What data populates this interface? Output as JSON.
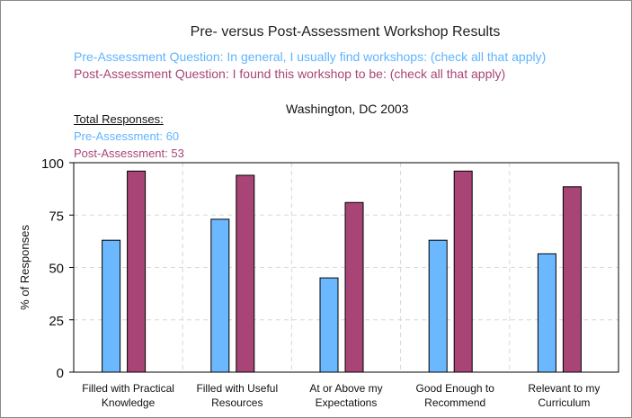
{
  "header": {
    "title": "Pre- versus Post-Assessment Workshop Results",
    "pre_question": "Pre-Assessment Question: In general, I usually find workshops: (check all that apply)",
    "post_question": "Post-Assessment Question: I found this workshop to be: (check all that apply)",
    "subtitle": "Washington, DC 2003",
    "totals_heading": "Total Responses:",
    "totals_pre": "Pre-Assessment: 60",
    "totals_post": "Post-Assessment: 53"
  },
  "colors": {
    "pre": "#6cb8ff",
    "post": "#a84576",
    "pre_text": "#5fb4ff",
    "post_text": "#a84576"
  },
  "chart_data": {
    "type": "bar",
    "title": "Pre- versus Post-Assessment Workshop Results",
    "subtitle": "Washington, DC 2003",
    "ylabel": "% of Responses",
    "xlabel": "",
    "ylim": [
      0,
      100
    ],
    "yticks": [
      0,
      25,
      50,
      75,
      100
    ],
    "grid": true,
    "categories": [
      [
        "Filled with Practical",
        "Knowledge"
      ],
      [
        "Filled with Useful",
        "Resources"
      ],
      [
        "At or Above my",
        "Expectations"
      ],
      [
        "Good Enough to",
        "Recommend"
      ],
      [
        "Relevant to my",
        "Curriculum"
      ]
    ],
    "series": [
      {
        "values": [
          63,
          73,
          45,
          63,
          56.5
        ]
      },
      {
        "values": [
          96,
          94,
          81,
          96,
          88.5
        ]
      }
    ]
  }
}
